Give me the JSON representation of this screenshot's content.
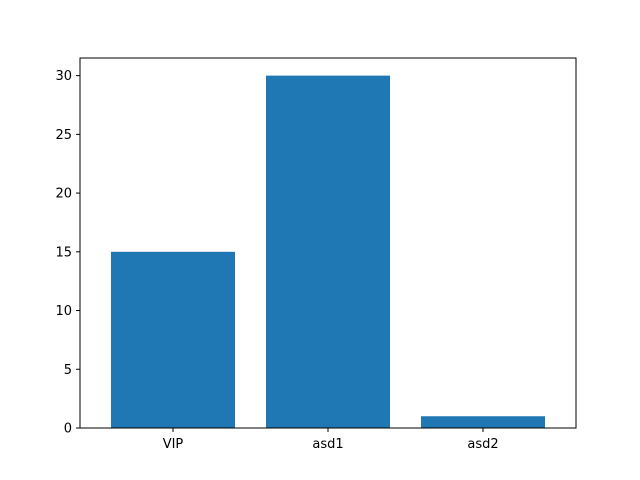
{
  "chart_data": {
    "type": "bar",
    "categories": [
      "VIP",
      "asd1",
      "asd2"
    ],
    "values": [
      15,
      30,
      1
    ],
    "title": "",
    "xlabel": "",
    "ylabel": "",
    "ylim": [
      0,
      31.5
    ],
    "yticks": [
      0,
      5,
      10,
      15,
      20,
      25,
      30
    ],
    "grid": false,
    "bar_color": "#1f77b4"
  }
}
